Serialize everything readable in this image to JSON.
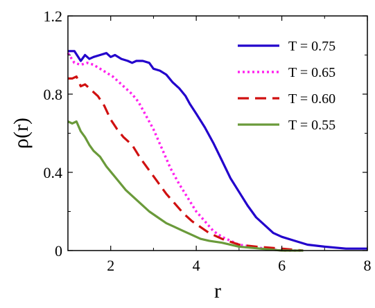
{
  "chart_data": {
    "type": "line",
    "xlabel": "r",
    "ylabel": "ρ(r)",
    "xlim": [
      1,
      8
    ],
    "ylim": [
      0,
      1.2
    ],
    "xticks": [
      2,
      4,
      6,
      8
    ],
    "yticks": [
      0,
      0.4,
      0.8,
      1.2
    ],
    "xtick_labels": [
      "2",
      "4",
      "6",
      "8"
    ],
    "ytick_labels": [
      "0",
      "0.4",
      "0.8",
      "1.2"
    ],
    "grid": false,
    "legend": "top-right",
    "series": [
      {
        "name": "T = 0.75",
        "color": "#2200cc",
        "dash": "solid",
        "x": [
          1.0,
          1.15,
          1.3,
          1.4,
          1.5,
          1.6,
          1.75,
          1.9,
          2.0,
          2.1,
          2.25,
          2.4,
          2.5,
          2.6,
          2.75,
          2.9,
          3.0,
          3.15,
          3.3,
          3.45,
          3.6,
          3.75,
          3.85,
          4.0,
          4.2,
          4.4,
          4.6,
          4.8,
          5.0,
          5.2,
          5.4,
          5.6,
          5.8,
          6.0,
          6.3,
          6.6,
          7.0,
          7.5,
          8.0
        ],
        "y": [
          1.02,
          1.02,
          0.97,
          1.0,
          0.98,
          0.99,
          1.0,
          1.01,
          0.99,
          1.0,
          0.98,
          0.97,
          0.96,
          0.97,
          0.97,
          0.96,
          0.93,
          0.92,
          0.9,
          0.86,
          0.83,
          0.79,
          0.75,
          0.7,
          0.63,
          0.55,
          0.46,
          0.37,
          0.3,
          0.23,
          0.17,
          0.13,
          0.09,
          0.07,
          0.05,
          0.03,
          0.02,
          0.01,
          0.01
        ]
      },
      {
        "name": "T = 0.65",
        "color": "#ff22ee",
        "dash": "dot",
        "x": [
          1.0,
          1.15,
          1.3,
          1.45,
          1.6,
          1.75,
          1.9,
          2.05,
          2.2,
          2.35,
          2.5,
          2.65,
          2.8,
          3.0,
          3.2,
          3.4,
          3.6,
          3.8,
          4.0,
          4.2,
          4.4,
          4.6,
          4.8,
          5.0,
          5.3,
          5.6,
          6.0,
          6.5
        ],
        "y": [
          1.01,
          0.96,
          0.95,
          0.96,
          0.95,
          0.93,
          0.91,
          0.89,
          0.86,
          0.83,
          0.8,
          0.76,
          0.7,
          0.62,
          0.52,
          0.42,
          0.34,
          0.27,
          0.2,
          0.15,
          0.1,
          0.07,
          0.05,
          0.03,
          0.02,
          0.01,
          0.0,
          0.0
        ]
      },
      {
        "name": "T = 0.60",
        "color": "#d01010",
        "dash": "dash",
        "x": [
          1.0,
          1.1,
          1.2,
          1.3,
          1.4,
          1.5,
          1.6,
          1.7,
          1.85,
          2.0,
          2.15,
          2.3,
          2.5,
          2.7,
          2.9,
          3.1,
          3.3,
          3.5,
          3.7,
          3.9,
          4.1,
          4.3,
          4.6,
          5.0,
          5.4,
          6.0,
          6.5
        ],
        "y": [
          0.88,
          0.88,
          0.89,
          0.84,
          0.85,
          0.83,
          0.81,
          0.79,
          0.74,
          0.67,
          0.62,
          0.58,
          0.54,
          0.47,
          0.41,
          0.35,
          0.29,
          0.24,
          0.19,
          0.15,
          0.12,
          0.09,
          0.06,
          0.03,
          0.02,
          0.01,
          0.0
        ]
      },
      {
        "name": "T = 0.55",
        "color": "#6a9a3a",
        "dash": "solid",
        "x": [
          1.0,
          1.1,
          1.2,
          1.3,
          1.4,
          1.5,
          1.6,
          1.75,
          1.9,
          2.05,
          2.2,
          2.35,
          2.5,
          2.7,
          2.9,
          3.1,
          3.3,
          3.5,
          3.7,
          3.9,
          4.1,
          4.3,
          4.6,
          5.0,
          5.5,
          6.0,
          6.5
        ],
        "y": [
          0.66,
          0.65,
          0.66,
          0.61,
          0.58,
          0.54,
          0.51,
          0.48,
          0.43,
          0.39,
          0.35,
          0.31,
          0.28,
          0.24,
          0.2,
          0.17,
          0.14,
          0.12,
          0.1,
          0.08,
          0.06,
          0.05,
          0.04,
          0.02,
          0.01,
          0.0,
          0.0
        ]
      }
    ]
  }
}
